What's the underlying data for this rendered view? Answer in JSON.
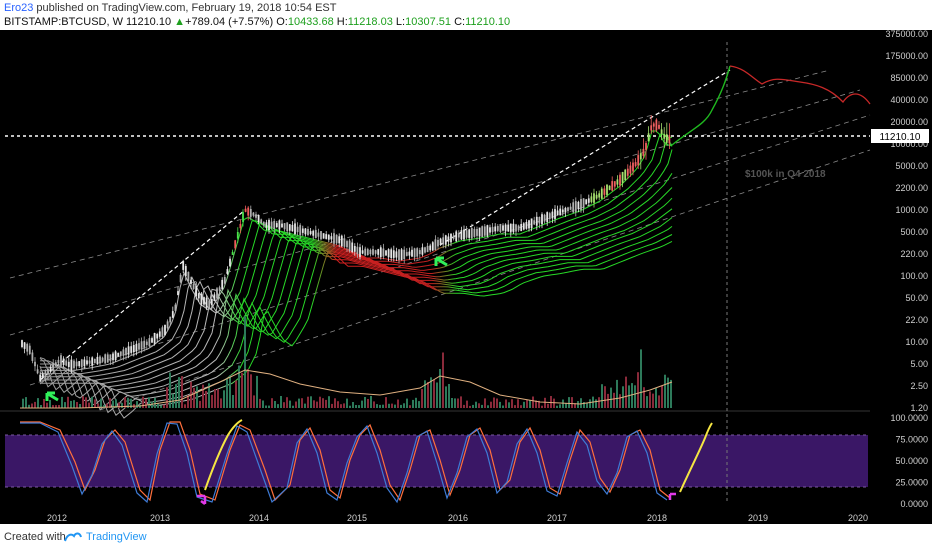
{
  "header": {
    "author": "Ero23",
    "published": "published on TradingView.com, February 19, 2018 10:54 EST",
    "symbol": "BITSTAMP:BTCUSD, W",
    "last": "11210.10",
    "change_arrow": "▲",
    "change": "+789.04 (+7.57%)",
    "o_label": "O:",
    "o": "10433.68",
    "h_label": "H:",
    "h": "11218.03",
    "l_label": "L:",
    "l": "10307.51",
    "c_label": "C:",
    "c": "11210.10"
  },
  "price_axis": {
    "ticks": [
      "375000.00",
      "175000.00",
      "85000.00",
      "40000.00",
      "20000.00",
      "10000.00",
      "5000.00",
      "2200.00",
      "1000.00",
      "500.00",
      "220.00",
      "100.00",
      "50.00",
      "22.00",
      "10.00",
      "5.00",
      "2.50",
      "1.20"
    ],
    "current_label": "11210.10",
    "scale": "log"
  },
  "osc_axis": {
    "ticks": [
      "100.0000",
      "75.0000",
      "50.0000",
      "25.0000",
      "0.0000"
    ],
    "upper_band": 80,
    "lower_band": 20
  },
  "time_axis": {
    "ticks": [
      "2012",
      "2013",
      "2014",
      "2015",
      "2016",
      "2017",
      "2018",
      "2019",
      "2020"
    ]
  },
  "annotation": {
    "text": "$100k in Q4 2018"
  },
  "footer": {
    "created": "Created with",
    "brand": "TradingView"
  },
  "colors": {
    "background": "#000000",
    "up": "#26a69a",
    "down": "#ef5350",
    "ribbon_green": "#27d827",
    "ribbon_red": "#e02020",
    "stoch_k": "#3e7bd6",
    "stoch_d": "#ff6f3c",
    "band_fill": "#3a1766",
    "projection_green": "#1fb81f",
    "projection_red": "#c82828",
    "arrow_green": "#31f05a",
    "arrow_magenta": "#e03ae8",
    "yellow_line": "#f5e642"
  }
}
